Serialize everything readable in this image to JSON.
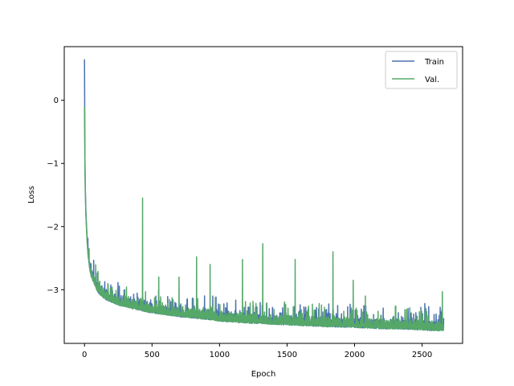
{
  "chart_data": {
    "type": "line",
    "title": "",
    "xlabel": "Epoch",
    "ylabel": "Loss",
    "xlim": [
      -150,
      2800
    ],
    "ylim": [
      -3.85,
      0.85
    ],
    "x_ticks": [
      0,
      500,
      1000,
      1500,
      2000,
      2500
    ],
    "y_ticks": [
      0,
      -1,
      -2,
      -3
    ],
    "x_tick_labels": [
      "0",
      "500",
      "1000",
      "1500",
      "2000",
      "2500"
    ],
    "y_tick_labels": [
      "0",
      "−1",
      "−2",
      "−3"
    ],
    "grid": false,
    "legend_position": "top-right",
    "series": [
      {
        "name": "Train",
        "color": "#4c72b0",
        "x": [
          0,
          3,
          6,
          10,
          15,
          20,
          30,
          40,
          50,
          60,
          80,
          100,
          150,
          200,
          250,
          300,
          350,
          400,
          450,
          500,
          600,
          700,
          800,
          900,
          1000,
          1200,
          1400,
          1600,
          1800,
          2000,
          2200,
          2400,
          2600,
          2660
        ],
        "values": [
          0.65,
          -0.9,
          -1.4,
          -1.75,
          -2.0,
          -2.2,
          -2.5,
          -2.65,
          -2.75,
          -2.8,
          -2.9,
          -3.0,
          -3.1,
          -3.15,
          -3.2,
          -3.22,
          -3.25,
          -3.27,
          -3.3,
          -3.32,
          -3.35,
          -3.38,
          -3.4,
          -3.42,
          -3.45,
          -3.48,
          -3.5,
          -3.52,
          -3.54,
          -3.55,
          -3.57,
          -3.58,
          -3.6,
          -3.6
        ],
        "spikes": [
          [
            950,
            -3.1
          ],
          [
            1250,
            -3.25
          ],
          [
            2520,
            -3.22
          ],
          [
            2660,
            -3.45
          ]
        ]
      },
      {
        "name": "Val.",
        "color": "#55a868",
        "x": [
          0,
          3,
          6,
          10,
          15,
          20,
          30,
          40,
          50,
          60,
          80,
          100,
          150,
          200,
          250,
          300,
          350,
          400,
          450,
          500,
          600,
          700,
          800,
          900,
          1000,
          1200,
          1400,
          1600,
          1800,
          2000,
          2200,
          2400,
          2600,
          2660
        ],
        "values": [
          -0.1,
          -0.95,
          -1.45,
          -1.8,
          -2.05,
          -2.25,
          -2.5,
          -2.65,
          -2.75,
          -2.8,
          -2.9,
          -3.0,
          -3.1,
          -3.15,
          -3.2,
          -3.22,
          -3.25,
          -3.27,
          -3.3,
          -3.32,
          -3.35,
          -3.38,
          -3.4,
          -3.42,
          -3.45,
          -3.48,
          -3.5,
          -3.52,
          -3.54,
          -3.55,
          -3.57,
          -3.58,
          -3.6,
          -3.6
        ],
        "spikes": [
          [
            430,
            -1.55
          ],
          [
            550,
            -2.8
          ],
          [
            700,
            -2.8
          ],
          [
            830,
            -2.48
          ],
          [
            930,
            -2.6
          ],
          [
            1170,
            -2.52
          ],
          [
            1320,
            -2.27
          ],
          [
            1560,
            -2.52
          ],
          [
            1840,
            -2.4
          ],
          [
            1990,
            -2.85
          ],
          [
            2080,
            -3.1
          ],
          [
            2650,
            -3.03
          ]
        ]
      }
    ]
  }
}
